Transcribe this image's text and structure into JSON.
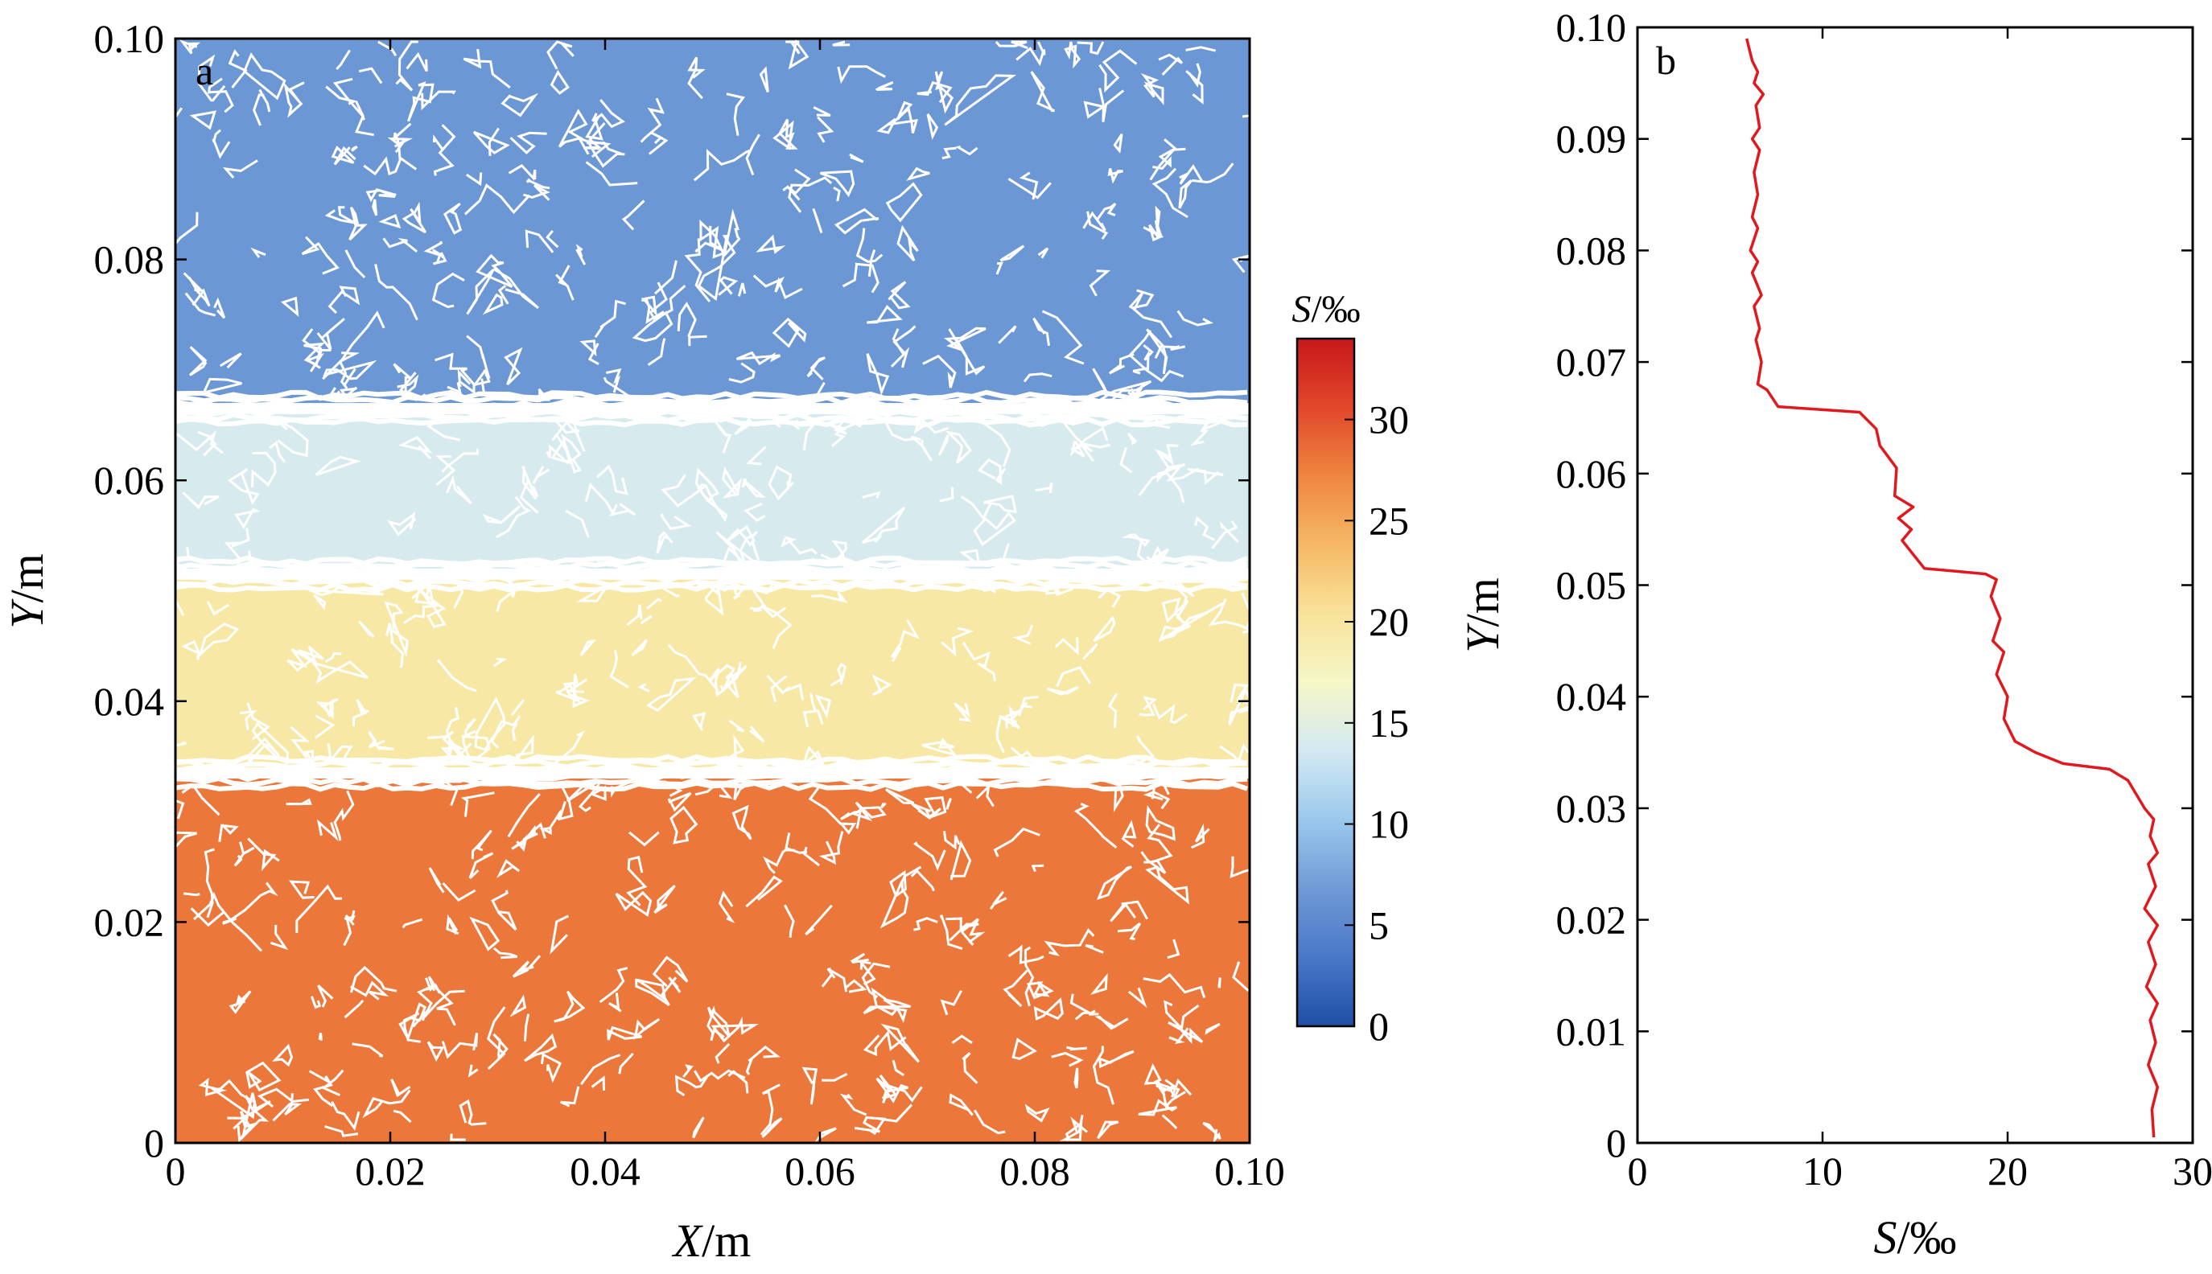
{
  "chart_data": [
    {
      "type": "heatmap",
      "panel_label": "a",
      "xlabel": {
        "var": "X",
        "unit": "/m"
      },
      "ylabel": {
        "var": "Y",
        "unit": "/m"
      },
      "xlim": [
        0,
        0.1
      ],
      "ylim": [
        0,
        0.1
      ],
      "x_ticks": [
        "0",
        "0.02",
        "0.04",
        "0.06",
        "0.08",
        "0.10"
      ],
      "y_ticks": [
        "0",
        "0.02",
        "0.04",
        "0.06",
        "0.08",
        "0.10"
      ],
      "x_tick_values": [
        0,
        0.02,
        0.04,
        0.06,
        0.08,
        0.1
      ],
      "y_tick_values": [
        0,
        0.02,
        0.04,
        0.06,
        0.08,
        0.1
      ],
      "contour_color": "#ffffff",
      "layers": [
        {
          "y_from": 0.0,
          "y_to": 0.033,
          "salinity": 28
        },
        {
          "y_from": 0.034,
          "y_to": 0.051,
          "salinity": 19.5
        },
        {
          "y_from": 0.052,
          "y_to": 0.066,
          "salinity": 14
        },
        {
          "y_from": 0.067,
          "y_to": 0.1,
          "salinity": 6.5
        }
      ],
      "colorbar": {
        "title": {
          "var": "S",
          "unit": "/‰"
        },
        "range": [
          0,
          34
        ],
        "ticks": [
          "0",
          "5",
          "10",
          "15",
          "20",
          "25",
          "30"
        ],
        "tick_values": [
          0,
          5,
          10,
          15,
          20,
          25,
          30
        ],
        "colors": [
          "#1e4fa6",
          "#4a78c8",
          "#6f9ad6",
          "#9ac8ec",
          "#d3e9f3",
          "#f6f6c7",
          "#f8e39a",
          "#f6b866",
          "#ef8640",
          "#e1472a",
          "#c7181c"
        ]
      }
    },
    {
      "type": "line",
      "panel_label": "b",
      "xlabel": {
        "var": "S",
        "unit": "/‰"
      },
      "ylabel": {
        "var": "Y",
        "unit": "/m"
      },
      "xlim": [
        0,
        30
      ],
      "ylim": [
        0,
        0.1
      ],
      "x_ticks": [
        "0",
        "10",
        "20",
        "30"
      ],
      "y_ticks": [
        "0",
        "0.01",
        "0.02",
        "0.03",
        "0.04",
        "0.05",
        "0.06",
        "0.07",
        "0.08",
        "0.09",
        "0.10"
      ],
      "x_tick_values": [
        0,
        10,
        20,
        30
      ],
      "y_tick_values": [
        0,
        0.01,
        0.02,
        0.03,
        0.04,
        0.05,
        0.06,
        0.07,
        0.08,
        0.09,
        0.1
      ],
      "line_color": "#e0191f",
      "series": [
        {
          "x": [
            27.9,
            27.8,
            28.1,
            27.6,
            28.0,
            27.7,
            28.1,
            27.5,
            28.0,
            27.6,
            28.1,
            27.4,
            28.0,
            27.6,
            28.1,
            27.7,
            27.9,
            27.4,
            26.5,
            25.5,
            23.0,
            21.5,
            20.4,
            19.8,
            20.0,
            19.4,
            19.8,
            19.2,
            19.6,
            19.1,
            19.4,
            18.8,
            15.5,
            14.3,
            14.8,
            14.1,
            14.9,
            13.9,
            14.0,
            13.1,
            12.9,
            12.0,
            7.6,
            7.0,
            6.5,
            6.7,
            6.4,
            6.6,
            6.3,
            6.7,
            6.2,
            6.5,
            6.1,
            6.5,
            6.2,
            6.5,
            6.3,
            6.6,
            6.2,
            6.6,
            6.4,
            6.8,
            6.3,
            6.5,
            6.2,
            5.9
          ],
          "y": [
            0.0005,
            0.003,
            0.005,
            0.007,
            0.009,
            0.011,
            0.0125,
            0.014,
            0.016,
            0.018,
            0.0195,
            0.021,
            0.023,
            0.025,
            0.026,
            0.0275,
            0.029,
            0.03,
            0.0325,
            0.0335,
            0.034,
            0.035,
            0.036,
            0.038,
            0.04,
            0.042,
            0.044,
            0.045,
            0.047,
            0.049,
            0.0505,
            0.051,
            0.0515,
            0.054,
            0.055,
            0.056,
            0.057,
            0.058,
            0.0605,
            0.0625,
            0.064,
            0.0655,
            0.066,
            0.0675,
            0.068,
            0.07,
            0.072,
            0.073,
            0.075,
            0.076,
            0.078,
            0.079,
            0.08,
            0.082,
            0.083,
            0.085,
            0.087,
            0.089,
            0.09,
            0.091,
            0.093,
            0.094,
            0.095,
            0.096,
            0.097,
            0.099
          ]
        }
      ]
    }
  ]
}
